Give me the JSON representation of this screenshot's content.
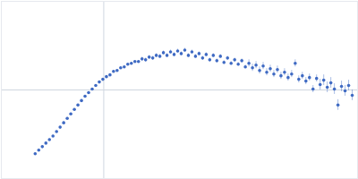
{
  "chart_data": {
    "type": "scatter",
    "color": "#3f6ac3",
    "marker": "circle",
    "grid": true,
    "tick_labels": false,
    "xlim": [
      -1.15,
      2.85
    ],
    "ylim": [
      -1,
      1
    ],
    "xticks": [
      0
    ],
    "yticks": [
      0
    ],
    "x": [
      -0.77,
      -0.73,
      -0.69,
      -0.65,
      -0.61,
      -0.57,
      -0.53,
      -0.49,
      -0.45,
      -0.41,
      -0.37,
      -0.33,
      -0.29,
      -0.25,
      -0.21,
      -0.17,
      -0.13,
      -0.09,
      -0.05,
      -0.01,
      0.03,
      0.07,
      0.11,
      0.15,
      0.19,
      0.23,
      0.27,
      0.31,
      0.35,
      0.39,
      0.43,
      0.47,
      0.51,
      0.55,
      0.59,
      0.63,
      0.67,
      0.71,
      0.75,
      0.79,
      0.83,
      0.87,
      0.91,
      0.95,
      0.99,
      1.03,
      1.07,
      1.11,
      1.15,
      1.19,
      1.23,
      1.27,
      1.31,
      1.35,
      1.39,
      1.43,
      1.47,
      1.51,
      1.55,
      1.59,
      1.63,
      1.67,
      1.71,
      1.75,
      1.79,
      1.83,
      1.87,
      1.91,
      1.95,
      1.99,
      2.03,
      2.07,
      2.11,
      2.15,
      2.19,
      2.23,
      2.27,
      2.31,
      2.35,
      2.39,
      2.43,
      2.47,
      2.51,
      2.55,
      2.59,
      2.63,
      2.67,
      2.71,
      2.75,
      2.79
    ],
    "values": [
      -0.72,
      -0.68,
      -0.64,
      -0.6,
      -0.56,
      -0.52,
      -0.47,
      -0.42,
      -0.37,
      -0.32,
      -0.27,
      -0.22,
      -0.17,
      -0.12,
      -0.07,
      -0.03,
      0.01,
      0.05,
      0.09,
      0.12,
      0.15,
      0.17,
      0.21,
      0.22,
      0.25,
      0.26,
      0.29,
      0.3,
      0.32,
      0.32,
      0.35,
      0.34,
      0.37,
      0.36,
      0.39,
      0.38,
      0.42,
      0.39,
      0.43,
      0.4,
      0.44,
      0.41,
      0.45,
      0.39,
      0.43,
      0.38,
      0.41,
      0.36,
      0.4,
      0.34,
      0.39,
      0.33,
      0.38,
      0.31,
      0.36,
      0.3,
      0.34,
      0.29,
      0.33,
      0.26,
      0.3,
      0.25,
      0.28,
      0.22,
      0.27,
      0.2,
      0.24,
      0.18,
      0.23,
      0.16,
      0.2,
      0.14,
      0.18,
      0.3,
      0.12,
      0.16,
      0.1,
      0.14,
      0.01,
      0.13,
      0.06,
      0.11,
      0.03,
      0.08,
      0.01,
      -0.17,
      0.04,
      -0.01,
      0.05,
      -0.06
    ],
    "errors": [
      0.01,
      0.01,
      0.01,
      0.01,
      0.01,
      0.01,
      0.01,
      0.01,
      0.01,
      0.01,
      0.01,
      0.01,
      0.01,
      0.01,
      0.01,
      0.01,
      0.01,
      0.01,
      0.01,
      0.01,
      0.01,
      0.01,
      0.01,
      0.01,
      0.01,
      0.01,
      0.01,
      0.01,
      0.01,
      0.01,
      0.02,
      0.02,
      0.02,
      0.02,
      0.02,
      0.02,
      0.02,
      0.02,
      0.02,
      0.02,
      0.02,
      0.02,
      0.02,
      0.02,
      0.02,
      0.02,
      0.02,
      0.02,
      0.02,
      0.02,
      0.02,
      0.02,
      0.02,
      0.02,
      0.02,
      0.02,
      0.02,
      0.02,
      0.02,
      0.02,
      0.04,
      0.04,
      0.04,
      0.04,
      0.04,
      0.04,
      0.04,
      0.04,
      0.04,
      0.04,
      0.04,
      0.04,
      0.04,
      0.04,
      0.04,
      0.04,
      0.04,
      0.04,
      0.04,
      0.04,
      0.06,
      0.06,
      0.06,
      0.06,
      0.06,
      0.06,
      0.06,
      0.06,
      0.06,
      0.06
    ]
  }
}
